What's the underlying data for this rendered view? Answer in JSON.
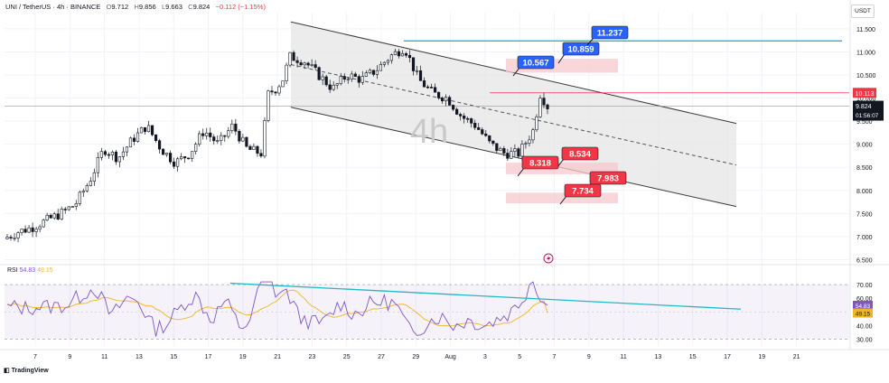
{
  "header": {
    "symbol": "UNI / TetherUS · 4h · BINANCE",
    "open_label": "O",
    "open": "9.712",
    "high_label": "H",
    "high": "9.856",
    "low_label": "L",
    "low": "9.663",
    "close_label": "C",
    "close": "9.824",
    "change": "−0.112 (−1.15%)"
  },
  "quote_currency": "USDT",
  "watermark": "4h",
  "rsi": {
    "label": "RSI",
    "value": "54.83",
    "ma_value": "49.15"
  },
  "footer": {
    "logo_text": "TradingView"
  },
  "colors": {
    "bull": "#26a69a",
    "bear": "#ef5350",
    "candle": "#131722",
    "target_blue": "#2962ff",
    "target_red": "#f23645",
    "trendline": "#22b8c4",
    "rsi_line": "#7e57c2",
    "rsi_ma": "#f0b429",
    "channel_fill": "#e6e6e6"
  },
  "chart_data": {
    "type": "candlestick",
    "title": "UNI / TetherUS · 4h · BINANCE",
    "y_axis": {
      "ticks": [
        "11.500",
        "11.000",
        "10.500",
        "10.000",
        "9.500",
        "9.000",
        "8.500",
        "8.000",
        "7.500",
        "7.000",
        "6.500"
      ],
      "range": [
        6.45,
        11.85
      ]
    },
    "x_axis": {
      "ticks": [
        "7",
        "9",
        "11",
        "13",
        "15",
        "17",
        "19",
        "21",
        "23",
        "25",
        "27",
        "29",
        "Aug",
        "3",
        "5",
        "7",
        "9",
        "11",
        "13",
        "15",
        "17",
        "19",
        "21"
      ]
    },
    "price_path": [
      [
        0,
        6.95
      ],
      [
        1,
        7.1
      ],
      [
        2,
        7.2
      ],
      [
        3,
        7.35
      ],
      [
        4,
        7.5
      ],
      [
        5,
        7.7
      ],
      [
        6,
        8.2
      ],
      [
        7,
        8.9
      ],
      [
        8,
        8.7
      ],
      [
        9,
        9.1
      ],
      [
        10,
        9.4
      ],
      [
        11,
        8.9
      ],
      [
        12,
        8.6
      ],
      [
        13,
        8.8
      ],
      [
        14,
        9.3
      ],
      [
        15,
        9.0
      ],
      [
        16,
        9.4
      ],
      [
        17,
        8.9
      ],
      [
        18,
        8.8
      ],
      [
        18.5,
        10.1
      ],
      [
        19,
        10.2
      ],
      [
        19.5,
        10.4
      ],
      [
        20,
        10.9
      ],
      [
        21,
        10.8
      ],
      [
        22,
        10.5
      ],
      [
        23,
        10.2
      ],
      [
        24,
        10.5
      ],
      [
        25,
        10.4
      ],
      [
        26,
        10.6
      ],
      [
        27,
        10.9
      ],
      [
        28,
        11.1
      ],
      [
        29,
        10.4
      ],
      [
        30,
        10.1
      ],
      [
        31,
        10.0
      ],
      [
        32,
        9.6
      ],
      [
        33,
        9.4
      ],
      [
        34,
        9.0
      ],
      [
        35,
        8.8
      ],
      [
        36,
        8.8
      ],
      [
        37,
        9.3
      ],
      [
        37.5,
        10.1
      ],
      [
        38,
        9.82
      ]
    ],
    "channel": {
      "upper_start": [
        21,
        11.65
      ],
      "upper_end": [
        61,
        9.45
      ],
      "lower_start": [
        21,
        9.8
      ],
      "lower_end": [
        61,
        7.65
      ]
    },
    "horizontal_levels": [
      {
        "price": 11.237,
        "label": "11.237",
        "kind": "resistance"
      },
      {
        "price": 10.113,
        "label": "10.113",
        "kind": "level"
      }
    ],
    "targets_up": [
      "10.567",
      "10.859",
      "11.237"
    ],
    "targets_down": [
      "8.534",
      "8.318",
      "7.983",
      "7.734"
    ],
    "current_price": {
      "value": "9.824",
      "countdown": "01:56:07"
    },
    "level_tag": "10.113",
    "rsi": {
      "ticks": [
        "70.00",
        "60.00",
        "50.00",
        "40.00",
        "30.00"
      ],
      "range": [
        25,
        78
      ],
      "value": "54.83",
      "ma": "49.15",
      "bands": [
        30,
        70
      ],
      "mid": 50,
      "trendline_start": [
        18,
        71
      ],
      "trendline_end": [
        55,
        52
      ]
    }
  }
}
